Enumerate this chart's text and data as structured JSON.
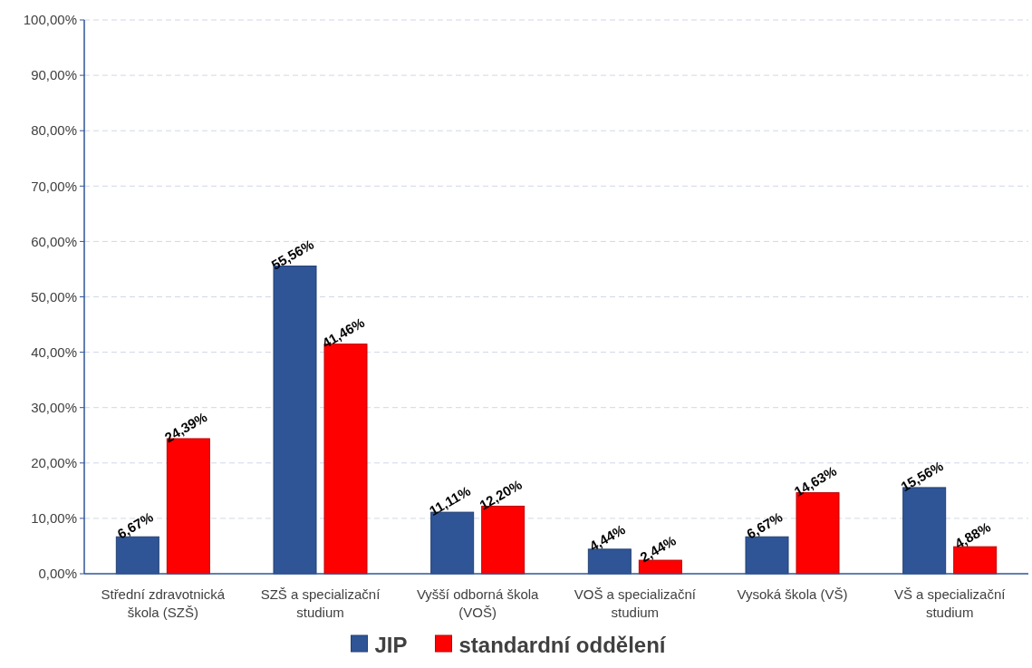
{
  "chart_data": {
    "type": "bar",
    "categories": [
      "Střední zdravotnická škola (SZŠ)",
      "SZŠ a specializační studium",
      "Vyšší odborná škola (VOŠ)",
      "VOŠ a specializační studium",
      "Vysoká škola (VŠ)",
      "VŠ a specializační studium"
    ],
    "series": [
      {
        "name": "JIP",
        "color": "#2f5597",
        "values": [
          6.67,
          55.56,
          11.11,
          4.44,
          6.67,
          15.56
        ],
        "value_labels": [
          "6,67%",
          "55,56%",
          "11,11%",
          "4,44%",
          "6,67%",
          "15,56%"
        ]
      },
      {
        "name": "standardní oddělení",
        "color": "#ff0000",
        "values": [
          24.39,
          41.46,
          12.2,
          2.44,
          14.63,
          4.88
        ],
        "value_labels": [
          "24,39%",
          "41,46%",
          "12,20%",
          "2,44%",
          "14,63%",
          "4,88%"
        ]
      }
    ],
    "ylim": [
      0,
      100
    ],
    "yticks": [
      {
        "value": 0,
        "label": "0,00%"
      },
      {
        "value": 10,
        "label": "10,00%"
      },
      {
        "value": 20,
        "label": "20,00%"
      },
      {
        "value": 30,
        "label": "30,00%"
      },
      {
        "value": 40,
        "label": "40,00%"
      },
      {
        "value": 50,
        "label": "50,00%"
      },
      {
        "value": 60,
        "label": "60,00%"
      },
      {
        "value": 70,
        "label": "70,00%"
      },
      {
        "value": 80,
        "label": "80,00%"
      },
      {
        "value": 90,
        "label": "90,00%"
      },
      {
        "value": 100,
        "label": "100,00%"
      }
    ],
    "grid": "y",
    "legend": "bottom"
  }
}
